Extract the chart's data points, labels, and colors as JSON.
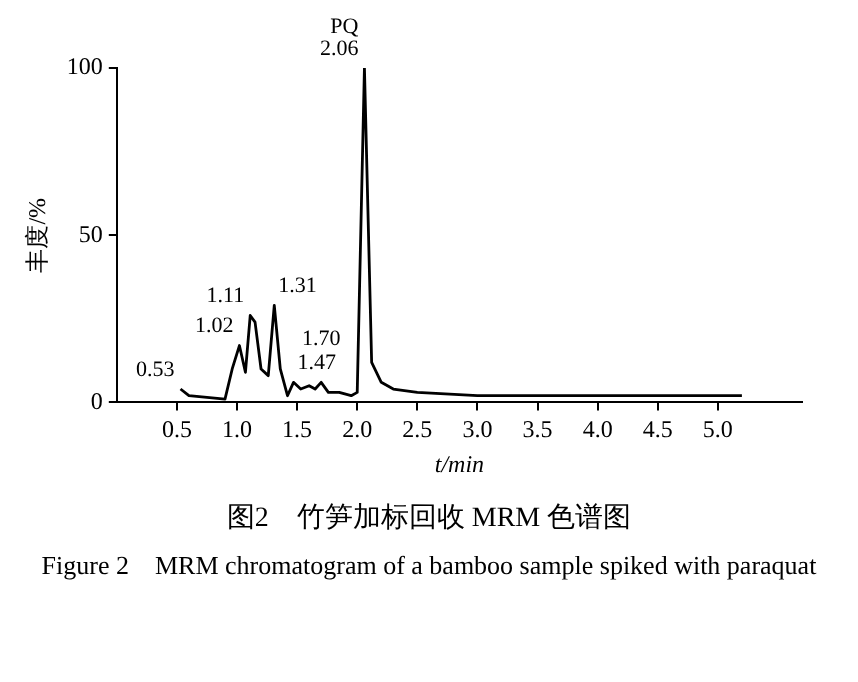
{
  "chart_data": {
    "type": "line",
    "title": "图2　竹笋加标回收 MRM 色谱图",
    "subtitle": "Figure 2　MRM chromatogram of a bamboo sample spiked with paraquat",
    "xlabel": "t/min",
    "ylabel": "丰度/%",
    "x": [
      0.53,
      0.6,
      0.75,
      0.9,
      0.96,
      1.02,
      1.07,
      1.11,
      1.15,
      1.2,
      1.26,
      1.31,
      1.36,
      1.42,
      1.47,
      1.53,
      1.6,
      1.65,
      1.7,
      1.76,
      1.85,
      1.95,
      2.0,
      2.06,
      2.12,
      2.2,
      2.3,
      2.5,
      3.0,
      3.5,
      4.0,
      4.5,
      5.0,
      5.2
    ],
    "series": [
      {
        "color": "#000000",
        "values": [
          4,
          2,
          1.5,
          1,
          10,
          17,
          9,
          26,
          24,
          10,
          8,
          29,
          10,
          2,
          6,
          4,
          5,
          4,
          6,
          3,
          3,
          2,
          3,
          100,
          12,
          6,
          4,
          3,
          2,
          2,
          2,
          2,
          2,
          2
        ]
      }
    ],
    "xlim": [
      0,
      5.7
    ],
    "xticks": [
      0.5,
      {
        "value": 1,
        "label": "1.0"
      },
      1.5,
      {
        "value": 2,
        "label": "2.0"
      },
      2.5,
      {
        "value": 3,
        "label": "3.0"
      },
      3.5,
      {
        "value": 4,
        "label": "4.0"
      },
      4.5,
      {
        "value": 5,
        "label": "5.0"
      }
    ],
    "ylim": [
      0,
      100
    ],
    "yticks": [
      0,
      50,
      100
    ],
    "grid": false,
    "legend": false,
    "marker": "none",
    "line_style": "solid",
    "annotations": [
      {
        "text": "0.53",
        "x": 0.53,
        "y": 4
      },
      {
        "text": "1.02",
        "x": 1.02,
        "y": 17
      },
      {
        "text": "1.11",
        "x": 1.11,
        "y": 26
      },
      {
        "text": "1.31",
        "x": 1.31,
        "y": 29
      },
      {
        "text": "1.47",
        "x": 1.47,
        "y": 6
      },
      {
        "text": "1.70",
        "x": 1.7,
        "y": 6
      },
      {
        "text": "2.06",
        "x": 2.06,
        "y": 100
      },
      {
        "text": "PQ",
        "x": 2.06,
        "y": 100
      }
    ]
  }
}
